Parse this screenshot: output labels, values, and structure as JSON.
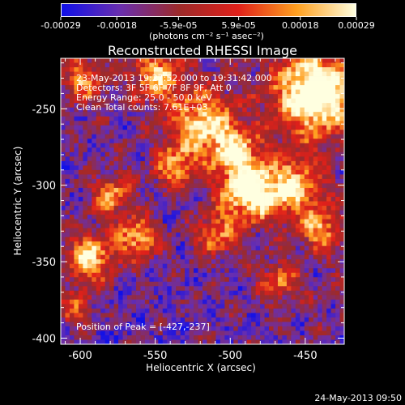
{
  "chart_data": {
    "type": "heatmap",
    "title": "Reconstructed RHESSI Image",
    "xlabel": "Heliocentric X (arcsec)",
    "ylabel": "Heliocentric Y (arcsec)",
    "xlim": [
      -613,
      -424
    ],
    "ylim": [
      -404,
      -217
    ],
    "x_ticks": [
      -600,
      -550,
      -500,
      -450
    ],
    "x_tick_labels": [
      "-600",
      "-550",
      "-500",
      "-450"
    ],
    "y_ticks": [
      -400,
      -350,
      -300,
      -250
    ],
    "y_tick_labels": [
      "-400",
      "-350",
      "-300",
      "-250"
    ],
    "colorbar": {
      "range": [
        -0.00029,
        0.00029
      ],
      "ticks": [
        -0.00029,
        -0.00018,
        -5.9e-05,
        5.9e-05,
        0.00018,
        0.00029
      ],
      "tick_labels": [
        "-0.00029",
        "-0.00018",
        "-5.9e-05",
        "5.9e-05",
        "0.00018",
        "0.00029"
      ],
      "unit": "(photons cm⁻² s⁻¹ asec⁻²)",
      "colors": [
        "#1010e8",
        "#6a2fae",
        "#9c2a2a",
        "#e0201a",
        "#ffa020",
        "#ffffe0"
      ]
    },
    "annotations": {
      "time": "23-May-2013 19:27:52.000 to 19:31:42.000",
      "detectors": "Detectors: 3F 5F 6F 7F 8F 9F, Att 0",
      "energy": "Energy Range: 25.0 - 50.0 keV",
      "clean": "Clean     Total counts: 7.61E+03",
      "peak": "Position of Peak = [-427,-237]"
    },
    "peak_position": [
      -427,
      -237
    ],
    "grid": false
  },
  "timestamp": "24-May-2013 09:50"
}
